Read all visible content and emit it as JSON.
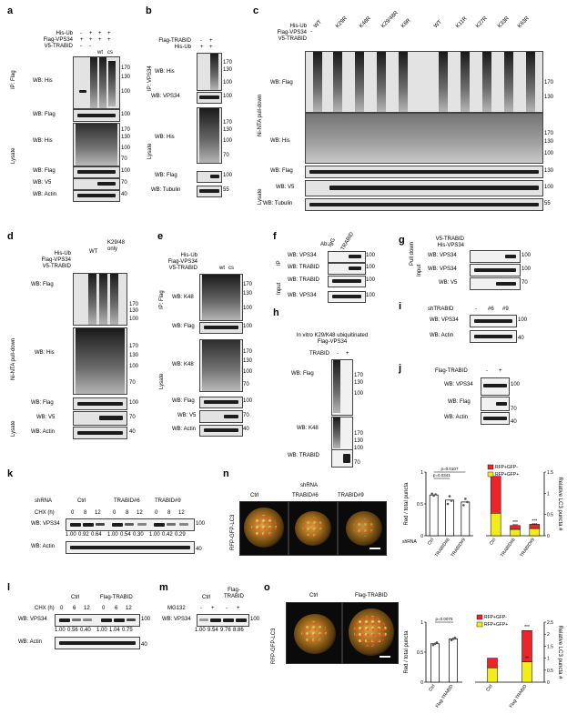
{
  "panels": {
    "a": {
      "label": "a",
      "rows": [
        "His-Ub",
        "Flag-VPS34",
        "V5-TRABID"
      ],
      "signs": [
        [
          "-",
          "+",
          "+",
          "+"
        ],
        [
          "+",
          "+",
          "+",
          "+"
        ],
        [
          "-",
          "-",
          "+",
          "+"
        ]
      ],
      "lanes": [
        "",
        "",
        "wt",
        "cs"
      ],
      "side_ip": "IP: Flag",
      "side_lys": "Lysate",
      "blots": [
        "WB: His",
        "WB: Flag",
        "WB: His",
        "WB: Flag",
        "WB: V5",
        "WB: Actin"
      ],
      "markers": [
        "170",
        "130",
        "100",
        "100",
        "170",
        "130",
        "100",
        "70",
        "100",
        "70",
        "40"
      ]
    },
    "b": {
      "label": "b",
      "rows": [
        "Flag-TRABID",
        "His-Ub"
      ],
      "signs": [
        [
          "-",
          "+"
        ],
        [
          "+",
          "+"
        ]
      ],
      "side_ip": "IP: VPS34",
      "side_lys": "Lysate",
      "blots": [
        "WB: His",
        "WB: VPS34",
        "WB: His",
        "WB: Flag",
        "WB: Tubulin"
      ],
      "markers": [
        "170",
        "130",
        "100",
        "100",
        "170",
        "130",
        "100",
        "70",
        "100",
        "55"
      ]
    },
    "c": {
      "label": "c",
      "rows": [
        "His-Ub",
        "Flag-VPS34",
        "V5-TRABID"
      ],
      "lanes": [
        "-",
        "WT",
        "K29R",
        "K48R",
        "K29/48R",
        "K6R",
        "WT",
        "K11R",
        "K27R",
        "K33R",
        "K63R"
      ],
      "side_pull": "Ni-NTA pull-down",
      "side_lys": "Lysate",
      "blots": [
        "WB: Flag",
        "WB: His",
        "WB: Flag",
        "WB: V5",
        "WB: Tubulin"
      ],
      "markers": [
        "170",
        "130",
        "170",
        "130",
        "100",
        "130",
        "100",
        "55"
      ]
    },
    "d": {
      "label": "d",
      "rows": [
        "His-Ub",
        "Flag-VPS34",
        "V5-TRABID"
      ],
      "groups": [
        "WT",
        "K29/48 only"
      ],
      "side_pull": "Ni-NTA pull-down",
      "side_lys": "Lysate",
      "blots": [
        "WB: Flag",
        "WB: His",
        "WB: Flag",
        "WB: V5",
        "WB: Actin"
      ],
      "markers": [
        "170",
        "130",
        "100",
        "170",
        "130",
        "100",
        "70",
        "100",
        "70",
        "40"
      ]
    },
    "e": {
      "label": "e",
      "rows": [
        "His-Ub",
        "Flag-VPS34",
        "V5-TRABID"
      ],
      "lanes": [
        "-",
        "-",
        "wt",
        "cs"
      ],
      "side_ip": "IP: Flag",
      "side_lys": "Lysate",
      "blots": [
        "WB: K48",
        "WB: Flag",
        "WB: K48",
        "WB: Flag",
        "WB: V5",
        "WB: Actin"
      ],
      "markers": [
        "170",
        "130",
        "100",
        "100",
        "170",
        "130",
        "100",
        "70",
        "100",
        "70",
        "40"
      ]
    },
    "f": {
      "label": "f",
      "ab": "Ab:",
      "lanes": [
        "IgG",
        "TRABID"
      ],
      "side_ip": "IP",
      "side_in": "Input",
      "blots": [
        "WB: VPS34",
        "WB: TRABID",
        "WB: TRABID",
        "WB: VPS34"
      ],
      "markers": [
        "100",
        "100",
        "100",
        "100"
      ]
    },
    "g": {
      "label": "g",
      "rows": [
        "V5-TRABID",
        "His-VPS34"
      ],
      "side_pull": "Pull down",
      "side_in": "Input",
      "blots": [
        "WB: VPS34",
        "WB: VPS34",
        "WB: V5"
      ],
      "markers": [
        "100",
        "100",
        "70"
      ]
    },
    "h": {
      "label": "h",
      "title": "In vitro K29/K48 ubiquitinated Flag-VPS34",
      "row": "TRABID",
      "signs": [
        "-",
        "+"
      ],
      "blots": [
        "WB: Flag",
        "WB: K48",
        "WB: TRABID"
      ],
      "markers": [
        "170",
        "130",
        "100",
        "170",
        "130",
        "100",
        "70"
      ]
    },
    "i": {
      "label": "i",
      "row": "shTRABID",
      "lanes": [
        "-",
        "#6",
        "#9"
      ],
      "blots": [
        "WB: VPS34",
        "WB: Actin"
      ],
      "markers": [
        "100",
        "40"
      ]
    },
    "j": {
      "label": "j",
      "row": "Flag-TRABID",
      "signs": [
        "-",
        "+"
      ],
      "blots": [
        "WB: VPS34",
        "WB: Flag",
        "WB: Actin"
      ],
      "markers": [
        "100",
        "70",
        "40"
      ]
    },
    "k": {
      "label": "k",
      "row1": "shRNA",
      "groups": [
        "Ctrl",
        "TRABID#6",
        "TRABID#9"
      ],
      "row2": "CHX (h)",
      "times": [
        "0",
        "8",
        "12",
        "0",
        "8",
        "12",
        "0",
        "8",
        "12"
      ],
      "blots": [
        "WB: VPS34",
        "WB: Actin"
      ],
      "quant": [
        "1.00",
        "0.92",
        "0.64",
        "1.00",
        "0.54",
        "0.30",
        "1.00",
        "0.42",
        "0.29"
      ],
      "markers": [
        "100",
        "40"
      ]
    },
    "l": {
      "label": "l",
      "groups": [
        "Ctrl",
        "Flag-TRABID"
      ],
      "row": "CHX (h)",
      "times": [
        "0",
        "6",
        "12",
        "0",
        "6",
        "12"
      ],
      "blots": [
        "WB: VPS34",
        "WB: Actin"
      ],
      "quant": [
        "1.00",
        "0.56",
        "0.40",
        "1.00",
        "1.04",
        "0.75"
      ],
      "markers": [
        "100",
        "40"
      ]
    },
    "m": {
      "label": "m",
      "group": "Flag-TRABID",
      "row": "MG132",
      "signs": [
        "-",
        "+",
        "-",
        "+"
      ],
      "lanes": [
        "Ctrl",
        "Flag-TRABID"
      ],
      "blots": [
        "WB: VPS34"
      ],
      "quant": [
        "1.00",
        "9.54",
        "9.76",
        "8.86"
      ],
      "markers": [
        "100"
      ]
    },
    "n": {
      "label": "n",
      "header": "shRNA",
      "images": [
        "Ctrl",
        "TRABID#6",
        "TRABID#9"
      ],
      "side": "RFP-GFP-LC3"
    },
    "o": {
      "label": "o",
      "images": [
        "Ctrl",
        "Flag-TRABID"
      ],
      "side": "RFP-GFP-LC3"
    }
  },
  "chart_data": [
    {
      "type": "bar",
      "title": "",
      "ylabel": "Red / total puncta",
      "y2label": "Relative LC3 puncta #",
      "ylim": [
        0,
        1
      ],
      "y2lim": [
        0,
        1.5
      ],
      "xlabel": "shRNA",
      "legend": [
        "RFP+GFP-",
        "RFP+GFP+"
      ],
      "legend_position": "top-right",
      "colors": {
        "red": "#e8262b",
        "yellow": "#f2ec1f",
        "bar": "#ffffff"
      },
      "categories": [
        "Ctrl",
        "TRABID#6",
        "TRABID#9"
      ],
      "red_total": {
        "values": [
          0.64,
          0.56,
          0.53
        ],
        "points": [
          [
            0.66,
            0.63,
            0.65
          ],
          [
            0.5,
            0.62,
            0.55
          ],
          [
            0.48,
            0.58,
            0.53
          ]
        ]
      },
      "pvalues": [
        "p=0.0107",
        "p=0.0341"
      ],
      "stacked": {
        "rfp_gfp_neg": [
          0.87,
          0.09,
          0.1
        ],
        "rfp_gfp_pos": [
          0.53,
          0.15,
          0.17
        ]
      },
      "asterisks": [
        "***",
        "***",
        "***",
        "***"
      ]
    },
    {
      "type": "bar",
      "title": "",
      "ylabel": "Red / total puncta",
      "y2label": "Relative LC3 puncta #",
      "ylim": [
        0,
        1
      ],
      "y2lim": [
        0,
        2.5
      ],
      "categories": [
        "Ctrl",
        "Flag-TRABID"
      ],
      "legend": [
        "RFP+GFP-",
        "RFP+GFP+"
      ],
      "legend_position": "top-right",
      "colors": {
        "red": "#e8262b",
        "yellow": "#f2ec1f",
        "bar": "#ffffff"
      },
      "red_total": {
        "values": [
          0.64,
          0.72
        ],
        "points": [
          [
            0.62,
            0.64,
            0.66
          ],
          [
            0.7,
            0.72,
            0.74
          ]
        ]
      },
      "pvalues": [
        "p=0.0075"
      ],
      "stacked": {
        "rfp_gfp_neg": [
          0.4,
          1.3
        ],
        "rfp_gfp_pos": [
          0.6,
          0.85
        ]
      },
      "asterisks": [
        "***",
        "**"
      ]
    }
  ]
}
